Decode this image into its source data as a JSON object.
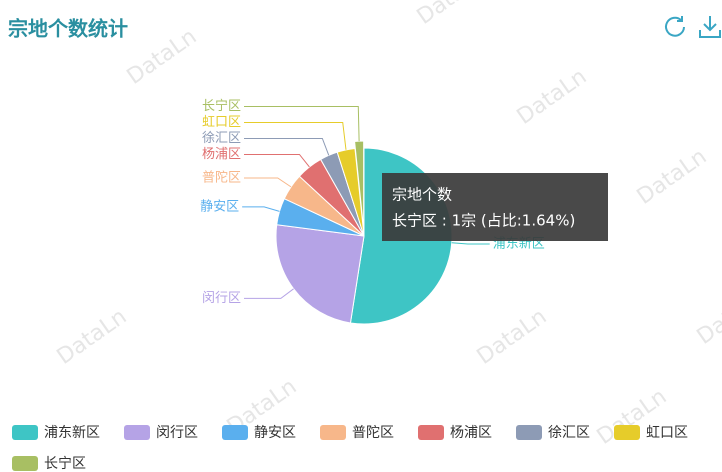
{
  "header": {
    "title": "宗地个数统计"
  },
  "watermark": "DataLn",
  "chart_data": {
    "type": "pie",
    "categories": [
      "浦东新区",
      "闵行区",
      "静安区",
      "普陀区",
      "杨浦区",
      "徐汇区",
      "虹口区",
      "长宁区"
    ],
    "values": [
      32,
      15,
      3,
      3,
      3,
      2,
      2,
      1
    ],
    "colors": [
      "#3ec5c5",
      "#b5a3e6",
      "#5aafee",
      "#f7b78a",
      "#e07070",
      "#8d9bb5",
      "#e6cc2a",
      "#a8bf63"
    ],
    "highlighted": 7,
    "tooltip": {
      "title": "宗地个数",
      "text": "长宁区 : 1宗 (占比:1.64%)"
    },
    "legend": "bottom"
  }
}
